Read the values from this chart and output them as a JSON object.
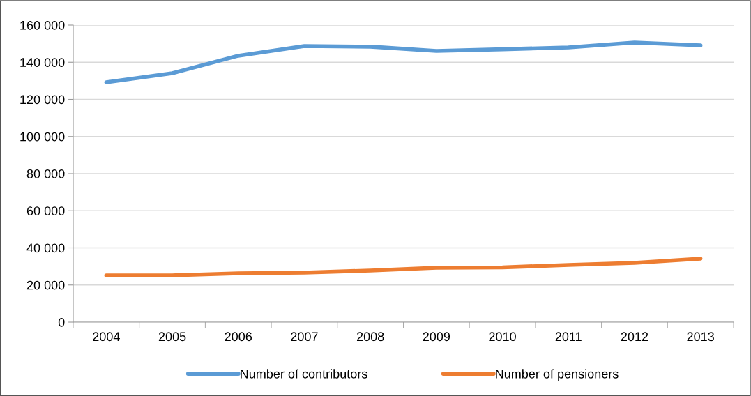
{
  "chart_data": {
    "type": "line",
    "categories": [
      "2004",
      "2005",
      "2006",
      "2007",
      "2008",
      "2009",
      "2010",
      "2011",
      "2012",
      "2013"
    ],
    "series": [
      {
        "name": "Number of contributors",
        "color": "#5b9bd5",
        "values": [
          129200,
          134100,
          143500,
          148700,
          148400,
          146100,
          147000,
          148000,
          150600,
          149100
        ]
      },
      {
        "name": "Number of pensioners",
        "color": "#ed7d31",
        "values": [
          25200,
          25200,
          26300,
          26700,
          27800,
          29300,
          29500,
          30800,
          31900,
          34200
        ]
      }
    ],
    "ylim": [
      0,
      160000
    ],
    "yticks": [
      {
        "value": 0,
        "label": "0"
      },
      {
        "value": 20000,
        "label": "20 000"
      },
      {
        "value": 40000,
        "label": "40 000"
      },
      {
        "value": 60000,
        "label": "60 000"
      },
      {
        "value": 80000,
        "label": "80 000"
      },
      {
        "value": 100000,
        "label": "100 000"
      },
      {
        "value": 120000,
        "label": "120 000"
      },
      {
        "value": 140000,
        "label": "140 000"
      },
      {
        "value": 160000,
        "label": "160 000"
      }
    ],
    "grid": "y",
    "legend": "bottom",
    "marker": "none",
    "line_style": "solid"
  }
}
